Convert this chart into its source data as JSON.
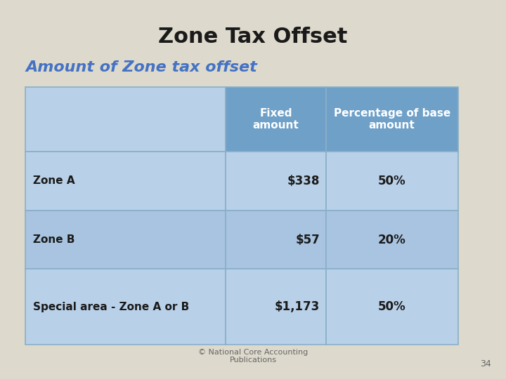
{
  "title": "Zone Tax Offset",
  "subtitle": "Amount of Zone tax offset",
  "bg_color": "#ddd9cc",
  "title_color": "#1a1a1a",
  "subtitle_color": "#4472c4",
  "table_header_bg": "#6fa0c8",
  "table_row_bg_light": "#b8d0e8",
  "table_row_bg_medium": "#a8c4e0",
  "table_border_color": "#8aafc8",
  "header_text_color": "#ffffff",
  "row_label_color": "#1a1a1a",
  "row_value_color": "#1a1a1a",
  "footer_text": "© National Core Accounting\nPublications",
  "page_number": "34",
  "columns": [
    "",
    "Fixed\namount",
    "Percentage of base\namount"
  ],
  "rows": [
    [
      "Zone A",
      "$338",
      "50%"
    ],
    [
      "Zone B",
      "$57",
      "20%"
    ],
    [
      "Special area - Zone A or B",
      "$1,173",
      "50%"
    ]
  ]
}
